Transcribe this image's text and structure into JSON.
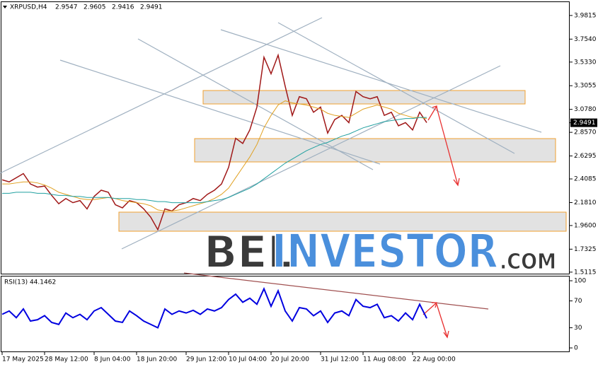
{
  "chart_data": {
    "type": "line",
    "symbol": "XRPUSD,H4",
    "ohlc": [
      2.9547,
      2.9605,
      2.9416,
      2.9491
    ],
    "last_price": 2.9491,
    "categories": [
      "17 May 2025",
      null,
      null,
      null,
      null,
      null,
      "28 May 12:00",
      null,
      null,
      null,
      null,
      null,
      null,
      "8 Jun 04:00",
      null,
      null,
      null,
      null,
      null,
      "18 Jun 20:00",
      null,
      null,
      null,
      null,
      null,
      null,
      "29 Jun 12:00",
      null,
      null,
      null,
      null,
      null,
      "10 Jul 04:00",
      null,
      null,
      null,
      null,
      null,
      "20 Jul 20:00",
      null,
      null,
      null,
      null,
      null,
      null,
      "31 Jul 12:00",
      null,
      null,
      null,
      null,
      null,
      "11 Aug 08:00",
      null,
      null,
      null,
      null,
      null,
      null,
      "22 Aug 00:00",
      null,
      null
    ],
    "series": [
      {
        "color": "#a01818",
        "values": [
          2.4,
          2.38,
          2.42,
          2.46,
          2.36,
          2.33,
          2.34,
          2.25,
          2.17,
          2.22,
          2.18,
          2.2,
          2.12,
          2.24,
          2.3,
          2.28,
          2.16,
          2.13,
          2.2,
          2.18,
          2.12,
          2.04,
          1.92,
          2.12,
          2.1,
          2.16,
          2.18,
          2.22,
          2.2,
          2.26,
          2.3,
          2.36,
          2.52,
          2.8,
          2.75,
          2.88,
          3.1,
          3.58,
          3.42,
          3.6,
          3.3,
          3.02,
          3.2,
          3.18,
          3.05,
          3.1,
          2.85,
          2.98,
          3.02,
          2.95,
          3.25,
          3.2,
          3.18,
          3.2,
          3.02,
          3.05,
          2.92,
          2.95,
          2.88,
          3.05,
          2.95
        ]
      },
      {
        "color": "#e0a020",
        "values": [
          2.36,
          2.36,
          2.37,
          2.38,
          2.38,
          2.37,
          2.35,
          2.32,
          2.28,
          2.26,
          2.24,
          2.22,
          2.21,
          2.21,
          2.22,
          2.23,
          2.22,
          2.2,
          2.19,
          2.18,
          2.17,
          2.15,
          2.11,
          2.1,
          2.1,
          2.11,
          2.13,
          2.15,
          2.17,
          2.19,
          2.22,
          2.26,
          2.32,
          2.42,
          2.52,
          2.62,
          2.74,
          2.9,
          3.02,
          3.12,
          3.16,
          3.14,
          3.13,
          3.12,
          3.1,
          3.08,
          3.04,
          3.02,
          3.01,
          3.0,
          3.04,
          3.08,
          3.1,
          3.12,
          3.1,
          3.08,
          3.04,
          3.02,
          3.0,
          3.0,
          2.99
        ]
      },
      {
        "color": "#20a0a0",
        "values": [
          2.27,
          2.27,
          2.28,
          2.28,
          2.28,
          2.27,
          2.27,
          2.26,
          2.25,
          2.25,
          2.24,
          2.24,
          2.23,
          2.23,
          2.23,
          2.23,
          2.22,
          2.22,
          2.22,
          2.21,
          2.21,
          2.2,
          2.19,
          2.19,
          2.18,
          2.18,
          2.18,
          2.18,
          2.18,
          2.19,
          2.2,
          2.21,
          2.23,
          2.26,
          2.29,
          2.32,
          2.36,
          2.41,
          2.46,
          2.51,
          2.56,
          2.6,
          2.64,
          2.68,
          2.71,
          2.74,
          2.76,
          2.79,
          2.82,
          2.84,
          2.87,
          2.9,
          2.92,
          2.94,
          2.96,
          2.97,
          2.98,
          2.99,
          2.99,
          3.0,
          3.0
        ]
      }
    ],
    "ylim": [
      1.49,
      4.11
    ],
    "yticks": [
      3.9815,
      {
        "value": 3.754,
        "label": "3.7540"
      },
      {
        "value": 3.533,
        "label": "3.5330"
      },
      3.3055,
      {
        "value": 3.078,
        "label": "3.0780"
      },
      {
        "value": 2.857,
        "label": "2.8570"
      },
      2.6295,
      2.4085,
      {
        "value": 2.181,
        "label": "2.1810"
      },
      {
        "value": 1.96,
        "label": "1.9600"
      },
      1.7325,
      1.5115
    ],
    "rsi": {
      "label": "RSI(13) 44.1462",
      "color": "#0000e0",
      "values": [
        50,
        55,
        45,
        58,
        40,
        42,
        48,
        38,
        35,
        52,
        45,
        50,
        42,
        55,
        60,
        50,
        40,
        38,
        55,
        48,
        40,
        35,
        30,
        58,
        50,
        55,
        52,
        56,
        50,
        58,
        55,
        60,
        72,
        80,
        68,
        74,
        65,
        88,
        62,
        85,
        55,
        40,
        60,
        58,
        48,
        55,
        38,
        52,
        55,
        48,
        72,
        62,
        60,
        65,
        45,
        48,
        40,
        52,
        42,
        65,
        44
      ],
      "ylim": [
        -6.3,
        107.4
      ],
      "yticks": [
        100,
        70,
        30,
        0
      ]
    },
    "watermark": {
      "part1": "BEL",
      "part2": "INVESTOR",
      "part3": ".COM"
    }
  }
}
